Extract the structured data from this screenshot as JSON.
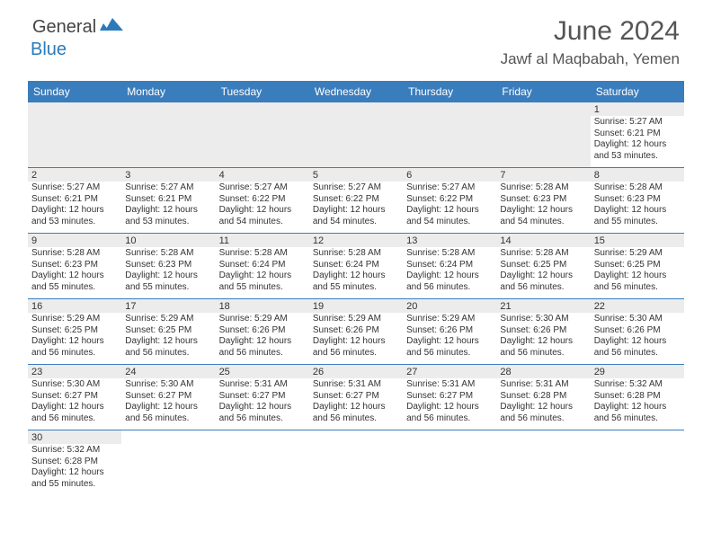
{
  "logo": {
    "text1": "General",
    "text2": "Blue"
  },
  "title": "June 2024",
  "location": "Jawf al Maqbabah, Yemen",
  "colors": {
    "header_bg": "#3a7dbd",
    "header_text": "#ffffff",
    "daynum_bg": "#edecec",
    "border": "#3a7dbd",
    "logo_blue": "#2b7bba"
  },
  "day_headers": [
    "Sunday",
    "Monday",
    "Tuesday",
    "Wednesday",
    "Thursday",
    "Friday",
    "Saturday"
  ],
  "weeks": [
    {
      "cells": [
        {
          "empty": true
        },
        {
          "empty": true
        },
        {
          "empty": true
        },
        {
          "empty": true
        },
        {
          "empty": true
        },
        {
          "empty": true
        },
        {
          "day": "1",
          "sunrise": "5:27 AM",
          "sunset": "6:21 PM",
          "daylight": "12 hours and 53 minutes."
        }
      ]
    },
    {
      "cells": [
        {
          "day": "2",
          "sunrise": "5:27 AM",
          "sunset": "6:21 PM",
          "daylight": "12 hours and 53 minutes."
        },
        {
          "day": "3",
          "sunrise": "5:27 AM",
          "sunset": "6:21 PM",
          "daylight": "12 hours and 53 minutes."
        },
        {
          "day": "4",
          "sunrise": "5:27 AM",
          "sunset": "6:22 PM",
          "daylight": "12 hours and 54 minutes."
        },
        {
          "day": "5",
          "sunrise": "5:27 AM",
          "sunset": "6:22 PM",
          "daylight": "12 hours and 54 minutes."
        },
        {
          "day": "6",
          "sunrise": "5:27 AM",
          "sunset": "6:22 PM",
          "daylight": "12 hours and 54 minutes."
        },
        {
          "day": "7",
          "sunrise": "5:28 AM",
          "sunset": "6:23 PM",
          "daylight": "12 hours and 54 minutes."
        },
        {
          "day": "8",
          "sunrise": "5:28 AM",
          "sunset": "6:23 PM",
          "daylight": "12 hours and 55 minutes."
        }
      ]
    },
    {
      "cells": [
        {
          "day": "9",
          "sunrise": "5:28 AM",
          "sunset": "6:23 PM",
          "daylight": "12 hours and 55 minutes."
        },
        {
          "day": "10",
          "sunrise": "5:28 AM",
          "sunset": "6:23 PM",
          "daylight": "12 hours and 55 minutes."
        },
        {
          "day": "11",
          "sunrise": "5:28 AM",
          "sunset": "6:24 PM",
          "daylight": "12 hours and 55 minutes."
        },
        {
          "day": "12",
          "sunrise": "5:28 AM",
          "sunset": "6:24 PM",
          "daylight": "12 hours and 55 minutes."
        },
        {
          "day": "13",
          "sunrise": "5:28 AM",
          "sunset": "6:24 PM",
          "daylight": "12 hours and 56 minutes."
        },
        {
          "day": "14",
          "sunrise": "5:28 AM",
          "sunset": "6:25 PM",
          "daylight": "12 hours and 56 minutes."
        },
        {
          "day": "15",
          "sunrise": "5:29 AM",
          "sunset": "6:25 PM",
          "daylight": "12 hours and 56 minutes."
        }
      ]
    },
    {
      "cells": [
        {
          "day": "16",
          "sunrise": "5:29 AM",
          "sunset": "6:25 PM",
          "daylight": "12 hours and 56 minutes."
        },
        {
          "day": "17",
          "sunrise": "5:29 AM",
          "sunset": "6:25 PM",
          "daylight": "12 hours and 56 minutes."
        },
        {
          "day": "18",
          "sunrise": "5:29 AM",
          "sunset": "6:26 PM",
          "daylight": "12 hours and 56 minutes."
        },
        {
          "day": "19",
          "sunrise": "5:29 AM",
          "sunset": "6:26 PM",
          "daylight": "12 hours and 56 minutes."
        },
        {
          "day": "20",
          "sunrise": "5:29 AM",
          "sunset": "6:26 PM",
          "daylight": "12 hours and 56 minutes."
        },
        {
          "day": "21",
          "sunrise": "5:30 AM",
          "sunset": "6:26 PM",
          "daylight": "12 hours and 56 minutes."
        },
        {
          "day": "22",
          "sunrise": "5:30 AM",
          "sunset": "6:26 PM",
          "daylight": "12 hours and 56 minutes."
        }
      ]
    },
    {
      "cells": [
        {
          "day": "23",
          "sunrise": "5:30 AM",
          "sunset": "6:27 PM",
          "daylight": "12 hours and 56 minutes."
        },
        {
          "day": "24",
          "sunrise": "5:30 AM",
          "sunset": "6:27 PM",
          "daylight": "12 hours and 56 minutes."
        },
        {
          "day": "25",
          "sunrise": "5:31 AM",
          "sunset": "6:27 PM",
          "daylight": "12 hours and 56 minutes."
        },
        {
          "day": "26",
          "sunrise": "5:31 AM",
          "sunset": "6:27 PM",
          "daylight": "12 hours and 56 minutes."
        },
        {
          "day": "27",
          "sunrise": "5:31 AM",
          "sunset": "6:27 PM",
          "daylight": "12 hours and 56 minutes."
        },
        {
          "day": "28",
          "sunrise": "5:31 AM",
          "sunset": "6:28 PM",
          "daylight": "12 hours and 56 minutes."
        },
        {
          "day": "29",
          "sunrise": "5:32 AM",
          "sunset": "6:28 PM",
          "daylight": "12 hours and 56 minutes."
        }
      ]
    },
    {
      "last": true,
      "cells": [
        {
          "day": "30",
          "sunrise": "5:32 AM",
          "sunset": "6:28 PM",
          "daylight": "12 hours and 55 minutes."
        },
        {
          "blank": true
        },
        {
          "blank": true
        },
        {
          "blank": true
        },
        {
          "blank": true
        },
        {
          "blank": true
        },
        {
          "blank": true
        }
      ]
    }
  ],
  "labels": {
    "sunrise": "Sunrise:",
    "sunset": "Sunset:",
    "daylight": "Daylight:"
  }
}
